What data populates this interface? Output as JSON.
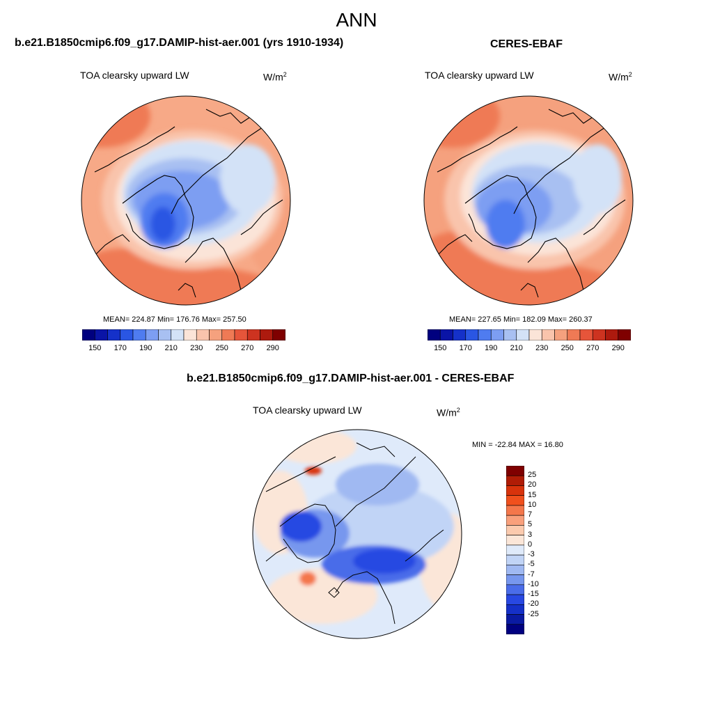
{
  "page": {
    "title": "ANN"
  },
  "panels": {
    "model": {
      "title": "b.e21.B1850cmip6.f09_g17.DAMIP-hist-aer.001 (yrs 1910-1934)",
      "variable": "TOA clearsky upward LW",
      "units_base": "W/m",
      "units_exp": "2",
      "stats": "MEAN= 224.87  Min= 176.76  Max= 257.50",
      "mean": 224.87,
      "min": 176.76,
      "max": 257.5
    },
    "obs": {
      "title": "CERES-EBAF",
      "variable": "TOA clearsky upward LW",
      "units_base": "W/m",
      "units_exp": "2",
      "stats": "MEAN= 227.65  Min= 182.09  Max= 260.37",
      "mean": 227.65,
      "min": 182.09,
      "max": 260.37
    },
    "diff": {
      "title": "b.e21.B1850cmip6.f09_g17.DAMIP-hist-aer.001 - CERES-EBAF",
      "variable": "TOA clearsky upward LW",
      "units_base": "W/m",
      "units_exp": "2",
      "stats": "MIN = -22.84 MAX =  16.80",
      "min": -22.84,
      "max": 16.8
    }
  },
  "colorbar_main": {
    "colors": [
      "#00007f",
      "#0a14a6",
      "#1531c9",
      "#2a56e3",
      "#4f7cf0",
      "#7d9ef2",
      "#a8c0f2",
      "#d3e2f7",
      "#fbe4d8",
      "#f9c4ac",
      "#f5a17e",
      "#ef7a55",
      "#e6553a",
      "#cd3320",
      "#ad1a0e",
      "#7f0000"
    ],
    "labels": [
      "150",
      "170",
      "190",
      "210",
      "230",
      "250",
      "270",
      "290"
    ]
  },
  "colorbar_diff": {
    "colors": [
      "#7f0000",
      "#b01c06",
      "#d8330c",
      "#f0501d",
      "#f4774b",
      "#f9a07c",
      "#fbcaae",
      "#fbe6d8",
      "#dfeafa",
      "#c1d4f6",
      "#a0b9f2",
      "#7797ee",
      "#4a6ce9",
      "#2848e2",
      "#1530c8",
      "#0a1aa2",
      "#000080"
    ],
    "labels": [
      "25",
      "20",
      "15",
      "10",
      "7",
      "5",
      "3",
      "0",
      "-3",
      "-5",
      "-7",
      "-10",
      "-15",
      "-20",
      "-25"
    ]
  }
}
